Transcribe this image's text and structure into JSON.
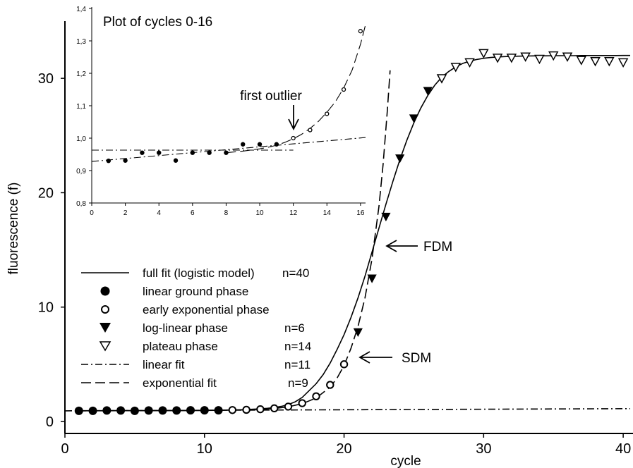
{
  "chart_data": [
    {
      "type": "scatter",
      "xlabel": "cycle",
      "ylabel": "fluorescence (f)",
      "xlim": [
        0,
        40.5
      ],
      "ylim": [
        0,
        35
      ],
      "xticks": [
        "0",
        "10",
        "20",
        "30",
        "40"
      ],
      "yticks": [
        "0",
        "10",
        "20",
        "30"
      ],
      "series": [
        {
          "name": "full fit (logistic model)",
          "legend_n": "n=40",
          "mark": "solid-line",
          "x": [
            1,
            1.5,
            2,
            2.5,
            3,
            3.5,
            4,
            4.5,
            5,
            5.5,
            6,
            6.5,
            7,
            7.5,
            8,
            8.5,
            9,
            9.5,
            10,
            10.5,
            11,
            11.5,
            12,
            12.5,
            13,
            13.5,
            14,
            14.5,
            15,
            15.5,
            16,
            16.5,
            17,
            17.5,
            18,
            18.5,
            19,
            19.5,
            20,
            20.5,
            21,
            21.5,
            22,
            22.5,
            23,
            23.5,
            24,
            24.5,
            25,
            25.5,
            26,
            26.5,
            27,
            27.5,
            28,
            28.5,
            29,
            29.5,
            30,
            30.5,
            31,
            31.5,
            32,
            32.5,
            33,
            33.5,
            34,
            34.5,
            35,
            35.5,
            36,
            36.5,
            37,
            37.5,
            38,
            38.5,
            39,
            39.5,
            40,
            40.5
          ],
          "y": [
            0.94,
            0.94,
            0.94,
            0.94,
            0.95,
            0.95,
            0.95,
            0.95,
            0.95,
            0.95,
            0.96,
            0.96,
            0.96,
            0.96,
            0.96,
            0.97,
            0.97,
            0.97,
            0.98,
            0.98,
            0.99,
            1.0,
            1.01,
            1.02,
            1.04,
            1.07,
            1.1,
            1.15,
            1.22,
            1.32,
            1.48,
            1.72,
            2.1,
            2.7,
            3.3,
            4.1,
            5.1,
            6.3,
            7.6,
            9.1,
            10.8,
            12.7,
            14.8,
            16.9,
            19.0,
            21.0,
            22.9,
            24.6,
            26.1,
            27.4,
            28.5,
            29.4,
            30.1,
            30.6,
            31.0,
            31.3,
            31.5,
            31.65,
            31.75,
            31.82,
            31.87,
            31.9,
            31.92,
            31.94,
            31.95,
            31.96,
            31.97,
            31.97,
            31.98,
            31.98,
            31.98,
            31.98,
            31.99,
            31.99,
            31.99,
            31.99,
            31.99,
            31.99,
            32.0,
            32.0
          ]
        },
        {
          "name": "linear ground phase",
          "mark": "filled-circle",
          "x": [
            1,
            2,
            3,
            4,
            5,
            6,
            7,
            8,
            9,
            10,
            11
          ],
          "y": [
            0.93,
            0.93,
            0.96,
            0.96,
            0.93,
            0.96,
            0.96,
            0.96,
            0.98,
            0.98,
            0.98
          ]
        },
        {
          "name": "early exponential phase",
          "mark": "open-circle",
          "x": [
            12,
            13,
            14,
            15,
            16,
            17,
            18,
            19,
            20
          ],
          "y": [
            1.0,
            1.02,
            1.07,
            1.15,
            1.3,
            1.6,
            2.2,
            3.2,
            5.0
          ]
        },
        {
          "name": "log-linear phase",
          "legend_n": "n=6",
          "mark": "filled-triangle",
          "x": [
            21,
            22,
            23,
            24,
            25,
            26
          ],
          "y": [
            7.8,
            12.5,
            17.9,
            23.0,
            26.5,
            28.9
          ]
        },
        {
          "name": "plateau phase",
          "legend_n": "n=14",
          "mark": "open-triangle",
          "x": [
            27,
            28,
            29,
            30,
            31,
            32,
            33,
            34,
            35,
            36,
            37,
            38,
            39,
            40
          ],
          "y": [
            30.0,
            31.0,
            31.4,
            32.2,
            31.8,
            31.8,
            31.9,
            31.7,
            32.0,
            31.9,
            31.6,
            31.5,
            31.5,
            31.4
          ]
        },
        {
          "name": "linear fit",
          "legend_n": "n=11",
          "mark": "dash-dot-line",
          "x": [
            0,
            40.5
          ],
          "y": [
            0.93,
            1.12
          ]
        },
        {
          "name": "exponential fit",
          "legend_n": "n=9",
          "mark": "dashed-line",
          "x": [
            1,
            4,
            8,
            10,
            12,
            14,
            15,
            16,
            17,
            18,
            19,
            19.5,
            20,
            20.5,
            21,
            21.5,
            22,
            22.5,
            22.8,
            23.1,
            23.3
          ],
          "y": [
            0.93,
            0.94,
            0.95,
            0.96,
            0.99,
            1.06,
            1.14,
            1.28,
            1.55,
            2.05,
            3.0,
            3.8,
            4.9,
            6.4,
            8.3,
            10.8,
            14.2,
            18.8,
            22.5,
            27.2,
            30.7
          ]
        }
      ],
      "annotations": [
        {
          "text": "FDM",
          "x": 22.8,
          "y": 17.8
        },
        {
          "text": "SDM",
          "x": 20.8,
          "y": 6.5
        }
      ]
    },
    {
      "type": "scatter",
      "title": "Plot of cycles 0-16",
      "xlim": [
        0,
        16.3
      ],
      "ylim": [
        0.8,
        1.4
      ],
      "xticks": [
        "0",
        "2",
        "4",
        "6",
        "8",
        "10",
        "12",
        "14",
        "16"
      ],
      "yticks": [
        "0,8",
        "0,9",
        "1,0",
        "1,1",
        "1,2",
        "1,3",
        "1,4"
      ],
      "series": [
        {
          "name": "linear ground phase",
          "mark": "filled-circle",
          "x": [
            1,
            2,
            3,
            4,
            5,
            6,
            7,
            8,
            9,
            10,
            11
          ],
          "y": [
            0.93,
            0.931,
            0.955,
            0.955,
            0.931,
            0.955,
            0.955,
            0.955,
            0.981,
            0.981,
            0.981
          ]
        },
        {
          "name": "early exponential phase",
          "mark": "open-circle",
          "x": [
            12,
            13,
            14,
            15,
            16
          ],
          "y": [
            1.0,
            1.025,
            1.075,
            1.15,
            1.33
          ]
        },
        {
          "name": "linear fit",
          "mark": "dash-dot-line",
          "x": [
            0,
            16.3
          ],
          "y": [
            0.928,
            1.002
          ]
        },
        {
          "name": "flat line",
          "mark": "dash-dot-line",
          "x": [
            0,
            12
          ],
          "y": [
            0.963,
            0.963
          ]
        },
        {
          "name": "exponential fit",
          "mark": "dashed-line",
          "x": [
            8,
            9,
            10,
            10.5,
            11,
            11.5,
            12,
            12.5,
            13,
            13.5,
            14,
            14.5,
            15,
            15.5,
            16,
            16.3
          ],
          "y": [
            0.955,
            0.96,
            0.967,
            0.972,
            0.978,
            0.987,
            0.998,
            1.012,
            1.03,
            1.052,
            1.08,
            1.112,
            1.155,
            1.21,
            1.29,
            1.35
          ]
        }
      ],
      "annotations": [
        {
          "text": "first outlier",
          "x": 12,
          "y": 1.0
        }
      ]
    }
  ],
  "legend": {
    "full_fit": {
      "label": "full fit (logistic model)",
      "n": "n=40"
    },
    "linear_ground": {
      "label": "linear ground phase",
      "n": ""
    },
    "early_exp": {
      "label": "early exponential phase",
      "n": ""
    },
    "log_linear": {
      "label": "log-linear phase",
      "n": "n=6"
    },
    "plateau": {
      "label": "plateau phase",
      "n": "n=14"
    },
    "linear_fit": {
      "label": "linear fit",
      "n": "n=11"
    },
    "exp_fit": {
      "label": "exponential fit",
      "n": "n=9"
    }
  }
}
